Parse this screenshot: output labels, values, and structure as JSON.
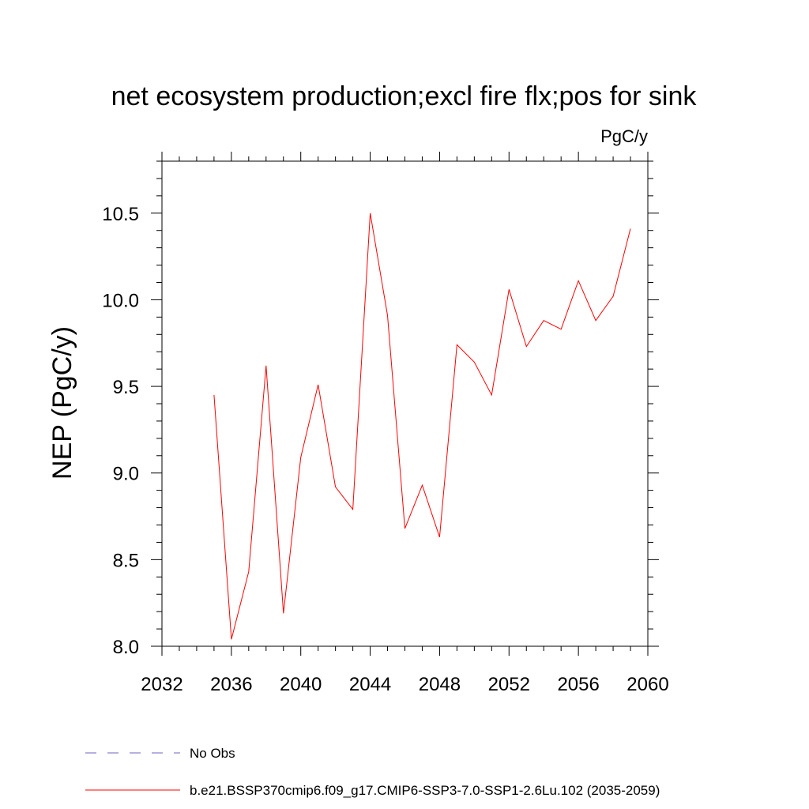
{
  "chart_data": {
    "type": "line",
    "title": "net ecosystem production;excl fire flx;pos for sink",
    "units": "PgC/y",
    "xlabel": "",
    "ylabel": "NEP  (PgC/y)",
    "xlim": [
      2032,
      2060
    ],
    "ylim": [
      8.0,
      10.8
    ],
    "xticks": [
      2032,
      2036,
      2040,
      2044,
      2048,
      2052,
      2056,
      2060
    ],
    "yticks": [
      8.0,
      8.5,
      9.0,
      9.5,
      10.0,
      10.5
    ],
    "xtick_labels": [
      "2032",
      "2036",
      "2040",
      "2044",
      "2048",
      "2052",
      "2056",
      "2060"
    ],
    "ytick_labels": [
      "8.0",
      "8.5",
      "9.0",
      "9.5",
      "10.0",
      "10.5"
    ],
    "grid": false,
    "legend_position": "bottom",
    "series": [
      {
        "name": "b.e21.BSSP370cmip6.f09_g17.CMIP6-SSP3-7.0-SSP1-2.6Lu.102 (2035-2059)",
        "color": "#ff0000",
        "style": "solid",
        "x": [
          2035,
          2036,
          2037,
          2038,
          2039,
          2040,
          2041,
          2042,
          2043,
          2044,
          2045,
          2046,
          2047,
          2048,
          2049,
          2050,
          2051,
          2052,
          2053,
          2054,
          2055,
          2056,
          2057,
          2058,
          2059
        ],
        "y": [
          9.45,
          8.04,
          8.43,
          9.62,
          8.19,
          9.09,
          9.51,
          8.92,
          8.79,
          10.5,
          9.91,
          8.68,
          8.93,
          8.63,
          9.74,
          9.64,
          9.45,
          10.06,
          9.73,
          9.88,
          9.83,
          10.11,
          9.88,
          10.02,
          10.41
        ]
      }
    ],
    "legend": [
      {
        "label": "No Obs",
        "color": "#7060c0",
        "style": "dashed"
      },
      {
        "label": "b.e21.BSSP370cmip6.f09_g17.CMIP6-SSP3-7.0-SSP1-2.6Lu.102 (2035-2059)",
        "color": "#ff0000",
        "style": "solid"
      }
    ]
  }
}
